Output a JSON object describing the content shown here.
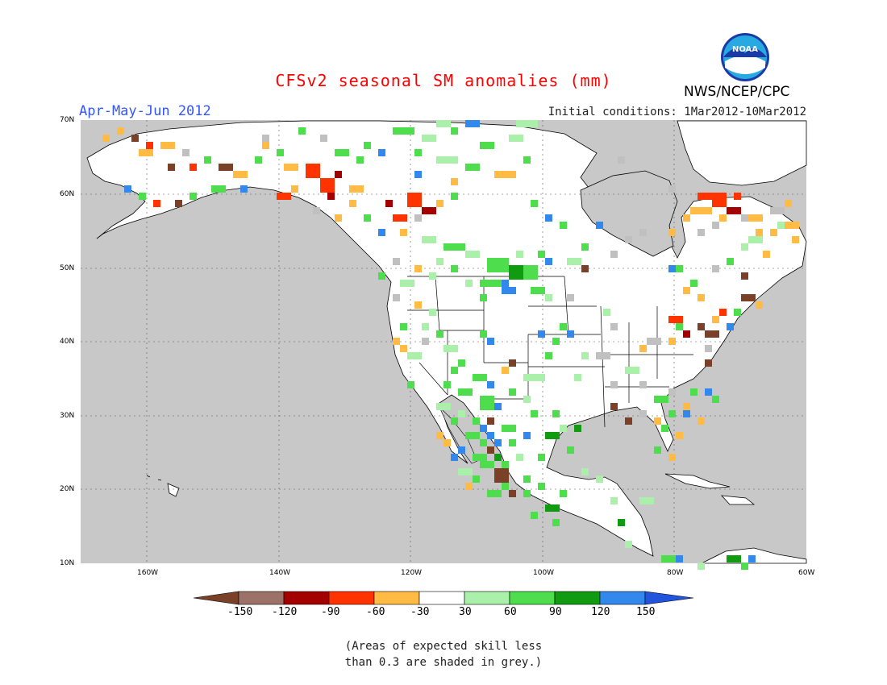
{
  "header": {
    "title": "CFSv2 seasonal SM anomalies (mm)",
    "period": "Apr-May-Jun 2012",
    "initial_conditions": "Initial conditions: 1Mar2012-10Mar2012",
    "agency": "NWS/NCEP/CPC",
    "logo_text": "NOAA"
  },
  "map": {
    "lat_labels": [
      "70N",
      "60N",
      "50N",
      "40N",
      "30N",
      "20N",
      "10N"
    ],
    "lon_labels": [
      "160W",
      "140W",
      "120W",
      "100W",
      "80W",
      "60W"
    ],
    "lat_range": [
      10,
      70
    ],
    "lon_range": [
      -170,
      -60
    ],
    "ocean_color": "#c8c8c8",
    "land_color": "#ffffff"
  },
  "colorbar": {
    "labels": [
      "-150",
      "-120",
      "-90",
      "-60",
      "-30",
      "30",
      "60",
      "90",
      "120",
      "150"
    ],
    "colors": [
      "#7a4028",
      "#9c7268",
      "#a30000",
      "#ff3300",
      "#ffbb44",
      "#ffffff",
      "#aaf0aa",
      "#4ddd4d",
      "#109b10",
      "#3388ee",
      "#2255dd"
    ]
  },
  "note": {
    "line1": "(Areas of expected skill less",
    "line2": "than 0.3 are shaded in grey.)"
  }
}
